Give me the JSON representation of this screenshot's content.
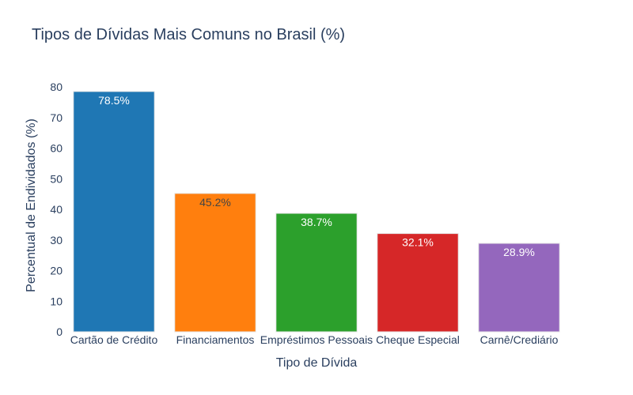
{
  "chart_data": {
    "type": "bar",
    "title": "Tipos de Dívidas Mais Comuns no Brasil (%)",
    "xlabel": "Tipo de Dívida",
    "ylabel": "Percentual de Endividados (%)",
    "categories": [
      "Cartão de Crédito",
      "Financiamentos",
      "Empréstimos Pessoais",
      "Cheque Especial",
      "Carnê/Crediário"
    ],
    "values": [
      78.5,
      45.2,
      38.7,
      32.1,
      28.9
    ],
    "data_labels": [
      "78.5%",
      "45.2%",
      "38.7%",
      "32.1%",
      "28.9%"
    ],
    "colors": [
      "#1f77b4",
      "#ff7f0e",
      "#2ca02c",
      "#d62728",
      "#9467bd"
    ],
    "label_colors": [
      "#ffffff",
      "#444444",
      "#ffffff",
      "#ffffff",
      "#ffffff"
    ],
    "ylim": [
      0,
      80
    ],
    "yticks": [
      0,
      10,
      20,
      30,
      40,
      50,
      60,
      70,
      80
    ],
    "grid": false,
    "legend": "none"
  }
}
